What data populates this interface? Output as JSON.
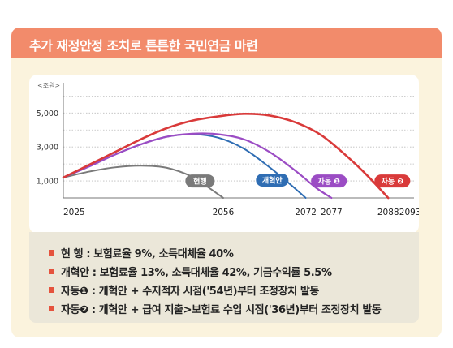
{
  "title": "추가 재정안정 조치로 튼튼한 국민연금 마련",
  "chart_data": {
    "type": "line",
    "ylabel": "<조원>",
    "y_ticks": [
      "5,000",
      "3,000",
      "1,000"
    ],
    "y_tick_values": [
      5000,
      3000,
      1000
    ],
    "ylim": [
      0,
      6400
    ],
    "xlim": [
      2025,
      2093
    ],
    "x_ticks": [
      {
        "value": 2025,
        "label": "2025"
      },
      {
        "value": 2056,
        "label": "2056"
      },
      {
        "value": 2072,
        "label": "2072"
      },
      {
        "value": 2077,
        "label": "2077"
      },
      {
        "value": 2088,
        "label": "2088"
      },
      {
        "value": 2093,
        "label": "2093년"
      }
    ],
    "grid": true,
    "series": [
      {
        "name": "현행",
        "color": "#7a7a7a",
        "x": [
          2025,
          2030,
          2035,
          2040,
          2045,
          2050,
          2053,
          2056
        ],
        "y": [
          1200,
          1550,
          1800,
          1900,
          1780,
          1250,
          650,
          0
        ]
      },
      {
        "name": "개혁안",
        "color": "#2f6db3",
        "x": [
          2025,
          2030,
          2035,
          2040,
          2045,
          2050,
          2055,
          2060,
          2065,
          2069,
          2072
        ],
        "y": [
          1200,
          1850,
          2550,
          3150,
          3600,
          3750,
          3550,
          2900,
          1800,
          800,
          0
        ]
      },
      {
        "name": "자동 ❶",
        "color": "#9b4cc4",
        "x": [
          2025,
          2030,
          2035,
          2040,
          2045,
          2050,
          2055,
          2060,
          2065,
          2070,
          2074,
          2077
        ],
        "y": [
          1200,
          1850,
          2550,
          3150,
          3600,
          3780,
          3750,
          3450,
          2700,
          1600,
          600,
          0
        ]
      },
      {
        "name": "자동 ❷",
        "color": "#d93a3a",
        "x": [
          2025,
          2030,
          2035,
          2040,
          2045,
          2050,
          2055,
          2060,
          2065,
          2070,
          2075,
          2080,
          2084,
          2088
        ],
        "y": [
          1200,
          1950,
          2700,
          3450,
          4100,
          4550,
          4800,
          4950,
          4850,
          4450,
          3700,
          2450,
          1300,
          0
        ]
      }
    ]
  },
  "notes": [
    "현   행 : 보험료율 9%, 소득대체율 40%",
    "개혁안 : 보험료율 13%, 소득대체율 42%, 기금수익률 5.5%",
    "자동❶ : 개혁안 + 수지적자 시점('54년)부터 조정장치 발동",
    "자동❷ : 개혁안 + 급여 지출>보험료 수입 시점('36년)부터 조정장치 발동"
  ]
}
